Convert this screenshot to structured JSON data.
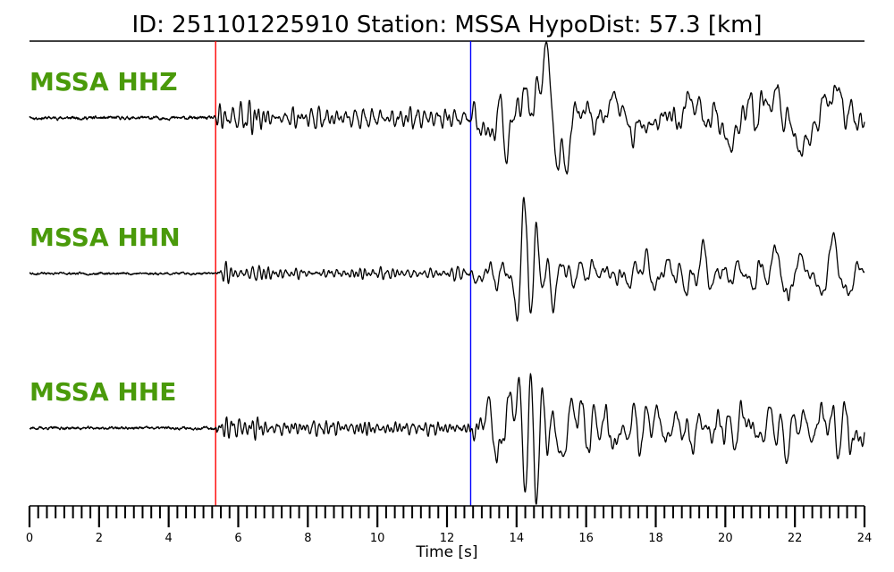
{
  "chart_data": {
    "type": "line",
    "title": "ID: 251101225910   Station: MSSA   HypoDist:     57.3 [km]",
    "xlabel": "Time [s]",
    "xlim": [
      0,
      24
    ],
    "x_ticks": [
      0,
      2,
      4,
      6,
      8,
      10,
      12,
      14,
      16,
      18,
      20,
      22,
      24
    ],
    "minor_tick_step": 0.25,
    "label_color": "#4a9a0a",
    "trace_color": "#000000",
    "markers": [
      {
        "phase": "P",
        "time": 5.35,
        "color": "#ff0000"
      },
      {
        "phase": "S",
        "time": 12.68,
        "color": "#0000ff"
      }
    ],
    "series": [
      {
        "name": "MSSA HHZ",
        "seed": 11,
        "amp_noise": 0.015,
        "amp_p": 0.28,
        "amp_s": 1.0
      },
      {
        "name": "MSSA HHN",
        "seed": 23,
        "amp_noise": 0.012,
        "amp_p": 0.16,
        "amp_s": 0.95
      },
      {
        "name": "MSSA HHE",
        "seed": 37,
        "amp_noise": 0.012,
        "amp_p": 0.18,
        "amp_s": 1.0
      }
    ]
  }
}
